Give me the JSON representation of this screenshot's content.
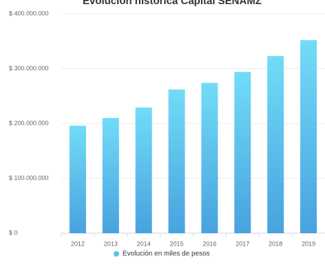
{
  "chart_data": {
    "type": "bar",
    "title": "Evolución histórica Capital SENAMZ",
    "categories": [
      "2012",
      "2013",
      "2014",
      "2015",
      "2016",
      "2017",
      "2018",
      "2019"
    ],
    "series": [
      {
        "name": "Evolución en miles de pesos",
        "color": "#5bc0ee",
        "values": [
          196000000,
          210000000,
          229000000,
          262000000,
          274000000,
          294000000,
          323000000,
          352000000
        ]
      }
    ],
    "ylim": [
      0,
      400000000
    ],
    "yticks": [
      {
        "value": 0,
        "label": "$ 0"
      },
      {
        "value": 100000000,
        "label": "$ 100.000.000"
      },
      {
        "value": 200000000,
        "label": "$ 200.000.000"
      },
      {
        "value": 300000000,
        "label": "$ 300.000.000"
      },
      {
        "value": 400000000,
        "label": "$ 400.000.000"
      }
    ],
    "grid": true,
    "legend": "bottom"
  }
}
